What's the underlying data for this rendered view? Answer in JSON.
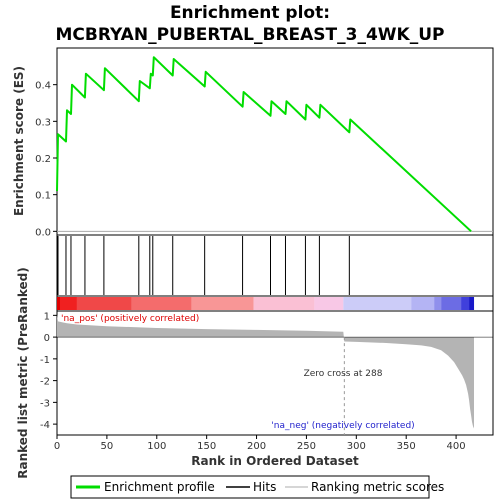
{
  "title_line1": "Enrichment plot:",
  "title_line2": "MCBRYAN_PUBERTAL_BREAST_3_4WK_UP",
  "colors": {
    "es_line": "#00dd00",
    "hits": "#000000",
    "metric_fill": "#b4b4b4",
    "pos_text": "#dd0000",
    "neg_text": "#2222cc",
    "zero_cross_line": "#999999"
  },
  "chart_data": [
    {
      "type": "line",
      "name": "enrichment-score",
      "ylabel": "Enrichment score (ES)",
      "ylim": [
        -0.01,
        0.5
      ],
      "xlim": [
        0,
        437
      ],
      "yticks": [
        0.0,
        0.1,
        0.2,
        0.3,
        0.4
      ],
      "ytick_labels": [
        "0.0",
        "0.1",
        "0.2",
        "0.3",
        "0.4"
      ],
      "x": [
        0,
        1,
        9,
        10,
        14,
        15,
        28,
        29,
        47,
        48,
        82,
        83,
        93,
        94,
        96,
        97,
        116,
        117,
        148,
        149,
        186,
        187,
        214,
        215,
        229,
        230,
        249,
        250,
        263,
        264,
        293,
        294,
        415
      ],
      "y": [
        0.11,
        0.265,
        0.245,
        0.33,
        0.32,
        0.4,
        0.365,
        0.43,
        0.385,
        0.445,
        0.355,
        0.41,
        0.39,
        0.43,
        0.425,
        0.475,
        0.425,
        0.47,
        0.395,
        0.435,
        0.34,
        0.38,
        0.315,
        0.355,
        0.32,
        0.355,
        0.305,
        0.345,
        0.31,
        0.345,
        0.27,
        0.305,
        0.0
      ]
    },
    {
      "type": "scatter",
      "name": "hits",
      "xlim": [
        0,
        437
      ],
      "x": [
        1,
        9,
        14,
        28,
        47,
        82,
        93,
        96,
        116,
        148,
        186,
        214,
        229,
        249,
        263,
        293
      ]
    },
    {
      "type": "heatmap",
      "name": "rank-color-bar",
      "xlim": [
        0,
        437
      ],
      "segments": [
        {
          "x0": 0,
          "x1": 3,
          "color": "#e00000"
        },
        {
          "x0": 3,
          "x1": 20,
          "color": "#f02020"
        },
        {
          "x0": 20,
          "x1": 75,
          "color": "#f04848"
        },
        {
          "x0": 75,
          "x1": 135,
          "color": "#f46c6c"
        },
        {
          "x0": 135,
          "x1": 197,
          "color": "#f89696"
        },
        {
          "x0": 197,
          "x1": 258,
          "color": "#fac0d4"
        },
        {
          "x0": 258,
          "x1": 287,
          "color": "#f8c8e6"
        },
        {
          "x0": 287,
          "x1": 355,
          "color": "#ccccf8"
        },
        {
          "x0": 355,
          "x1": 378,
          "color": "#b4b4f4"
        },
        {
          "x0": 378,
          "x1": 385,
          "color": "#9090ec"
        },
        {
          "x0": 385,
          "x1": 405,
          "color": "#6c6ce4"
        },
        {
          "x0": 405,
          "x1": 413,
          "color": "#4040dc"
        },
        {
          "x0": 413,
          "x1": 418,
          "color": "#1818c8"
        }
      ]
    },
    {
      "type": "area",
      "name": "ranked-list-metric",
      "xlabel": "Rank in Ordered Dataset",
      "ylabel": "Ranked list metric (PreRanked)",
      "xlim": [
        0,
        437
      ],
      "ylim": [
        -4.5,
        1.2
      ],
      "xticks": [
        0,
        50,
        100,
        150,
        200,
        250,
        300,
        350,
        400
      ],
      "xtick_labels": [
        "0",
        "50",
        "100",
        "150",
        "200",
        "250",
        "300",
        "350",
        "400"
      ],
      "yticks": [
        1,
        0,
        -1,
        -2,
        -3,
        -4
      ],
      "ytick_labels": [
        "1",
        "0",
        "-1",
        "-2",
        "-3",
        "-4"
      ],
      "x": [
        0,
        1,
        5,
        10,
        20,
        50,
        100,
        150,
        200,
        250,
        287,
        288,
        300,
        330,
        350,
        365,
        375,
        385,
        392,
        398,
        402,
        406,
        408,
        410,
        412,
        413,
        414,
        415,
        416,
        417,
        418
      ],
      "y": [
        1.02,
        0.72,
        0.68,
        0.64,
        0.58,
        0.5,
        0.42,
        0.37,
        0.33,
        0.29,
        0.25,
        -0.2,
        -0.22,
        -0.27,
        -0.33,
        -0.38,
        -0.45,
        -0.6,
        -0.85,
        -1.15,
        -1.45,
        -1.75,
        -1.95,
        -2.2,
        -2.6,
        -2.9,
        -3.3,
        -3.6,
        -3.9,
        -4.1,
        -4.2
      ],
      "annotations": {
        "pos": "'na_pos' (positively correlated)",
        "neg": "'na_neg' (negatively correlated)",
        "zero_cross": "Zero cross at 288",
        "zero_cross_rank": 288
      }
    }
  ],
  "legend": [
    {
      "label": "Enrichment profile",
      "kind": "line",
      "color": "#00dd00"
    },
    {
      "label": "Hits",
      "kind": "line",
      "color": "#000000"
    },
    {
      "label": "Ranking metric scores",
      "kind": "line",
      "color": "#c8c8c8"
    }
  ]
}
